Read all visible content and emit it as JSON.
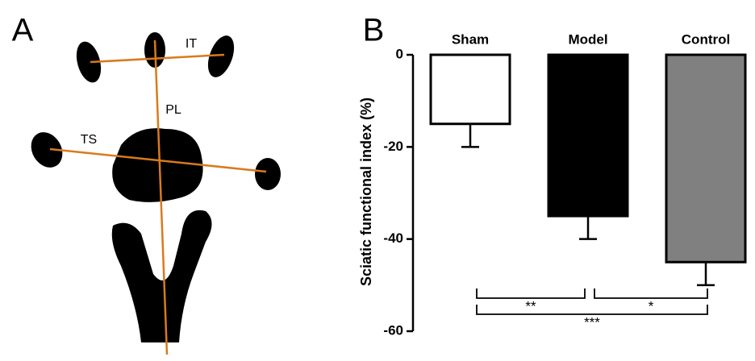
{
  "panel_a": {
    "label": "A",
    "measure_labels": [
      "IT",
      "PL",
      "TS"
    ]
  },
  "chart_data": {
    "type": "bar",
    "panel_label": "B",
    "ylabel": "Sciatic functional index (%)",
    "categories": [
      "Sham",
      "Model",
      "Control"
    ],
    "values": [
      -15,
      -35,
      -45
    ],
    "errors": [
      5,
      5,
      5
    ],
    "colors": [
      "#ffffff",
      "#000000",
      "#808080"
    ],
    "ylim": [
      0,
      -60
    ],
    "yticks": [
      0,
      -20,
      -40,
      -60
    ],
    "annotations": [
      "**",
      "*",
      "***"
    ]
  }
}
